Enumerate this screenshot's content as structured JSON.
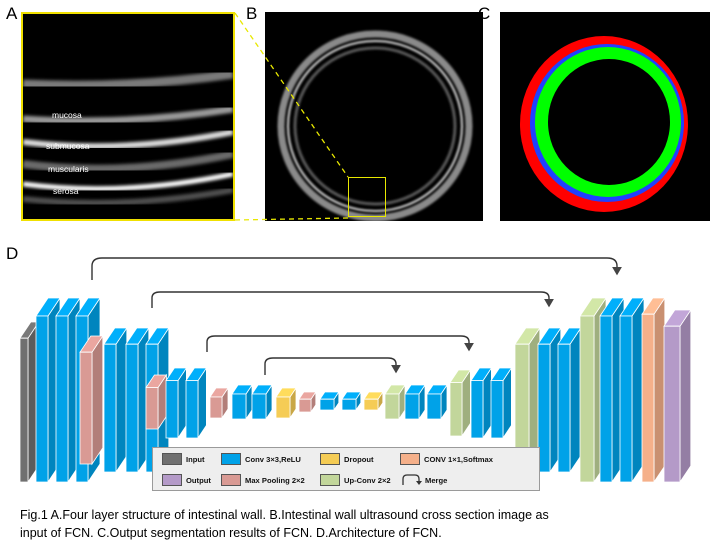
{
  "panels": {
    "a_label": "A",
    "b_label": "B",
    "c_label": "C",
    "d_label": "D"
  },
  "layers": {
    "mucosa": "mucosa",
    "submucosa": "submucosa",
    "muscularis": "muscularis",
    "serosa": "serosa"
  },
  "legend": {
    "input": "Input",
    "conv": "Conv 3×3,ReLU",
    "dropout": "Dropout",
    "conv1": "CONV 1×1,Softmax",
    "output": "Output",
    "maxpool": "Max Pooling 2×2",
    "upconv": "Up-Conv 2×2",
    "merge": "Merge"
  },
  "caption": {
    "line1": "Fig.1    A.Four layer structure of intestinal wall.   B.Intestinal wall ultrasound cross section image as",
    "line2": "input of FCN.   C.Output segmentation results of FCN.   D.Architecture of FCN."
  },
  "colors": {
    "input": "#707070",
    "conv": "#00a2e8",
    "dropout": "#f5cc55",
    "conv1": "#f5b08a",
    "output": "#b49ac8",
    "maxpool": "#d99a94",
    "upconv": "#c2d69b",
    "segment_red": "#ff0000",
    "segment_blue": "#2040ff",
    "segment_green": "#00ff00",
    "highlight": "#e8e800"
  }
}
